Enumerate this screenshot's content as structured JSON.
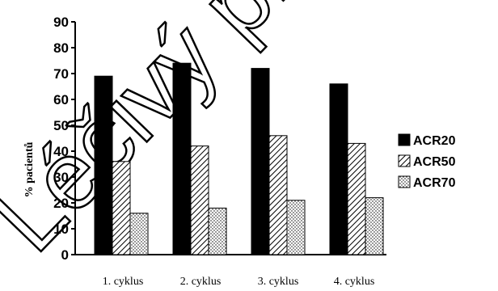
{
  "chart_data": {
    "type": "bar",
    "categories": [
      "1. cyklus",
      "2. cyklus",
      "3. cyklus",
      "4. cyklus"
    ],
    "series": [
      {
        "name": "ACR20",
        "values": [
          69,
          74,
          72,
          66
        ],
        "pattern": "solid"
      },
      {
        "name": "ACR50",
        "values": [
          36,
          42,
          46,
          43
        ],
        "pattern": "hatch"
      },
      {
        "name": "ACR70",
        "values": [
          16,
          18,
          21,
          22
        ],
        "pattern": "dots"
      }
    ],
    "ylabel": "% pacientů",
    "xlabel": "",
    "ylim": [
      0,
      90
    ],
    "yticks": [
      0,
      10,
      20,
      30,
      40,
      50,
      60,
      70,
      80,
      90
    ],
    "grid": false,
    "legend": "right",
    "colors": {
      "bar": "#000000",
      "fill": "#ffffff"
    }
  },
  "watermark": "Léčivý příp"
}
